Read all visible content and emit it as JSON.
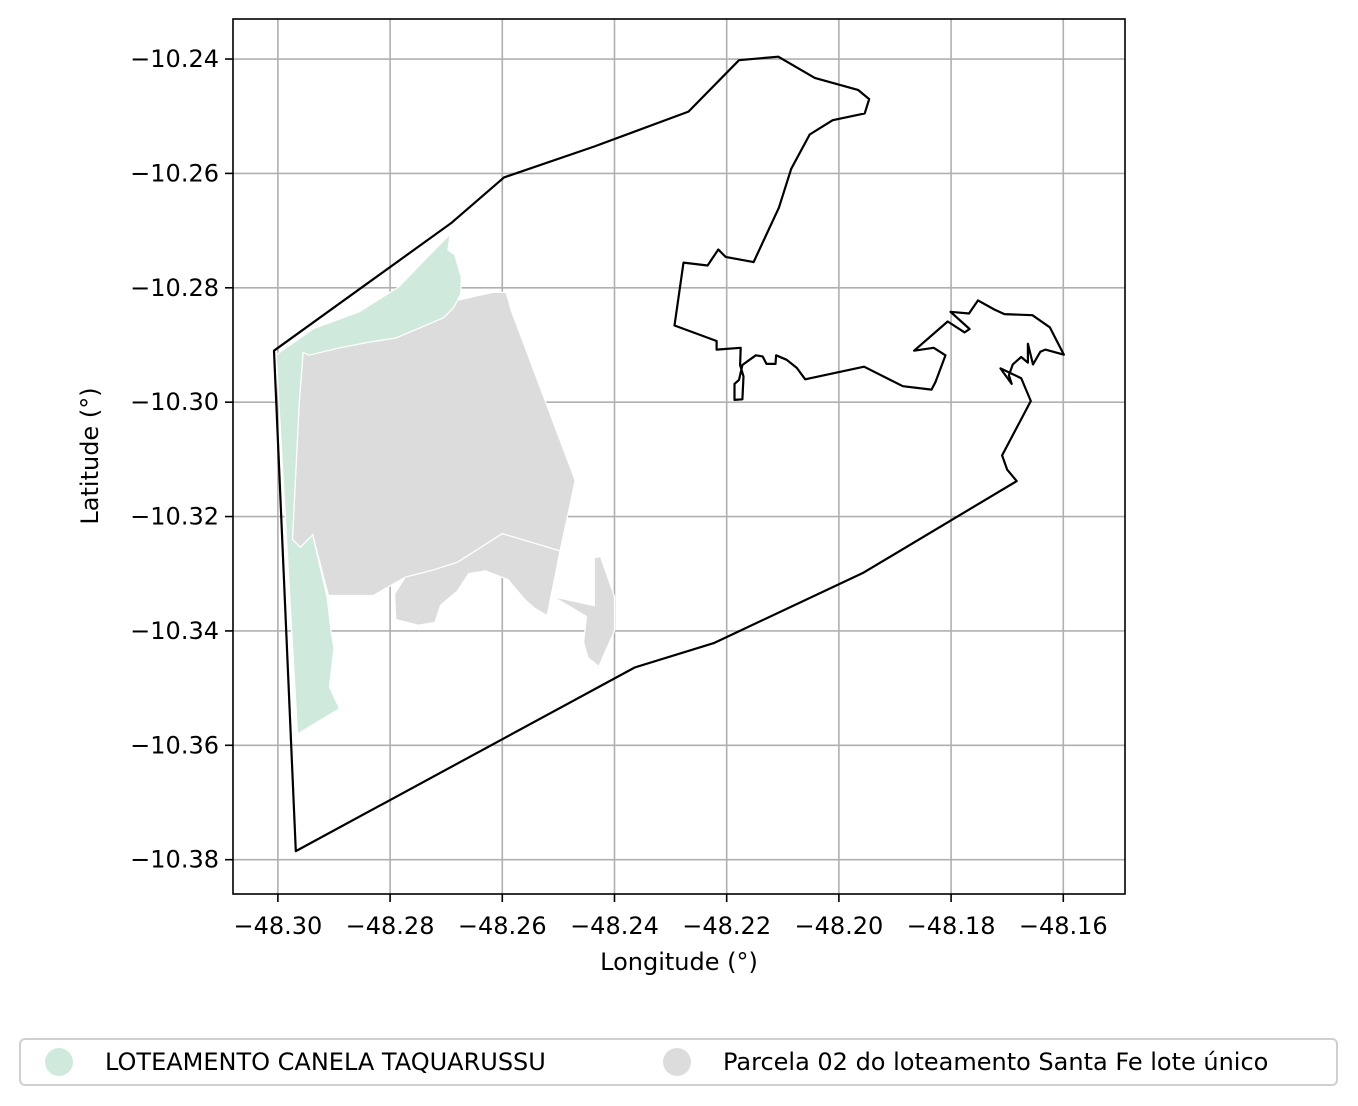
{
  "chart_data": {
    "type": "map",
    "xlabel": "Longitude (°)",
    "ylabel": "Latitude (°)",
    "xlim": [
      -48.308,
      -48.149
    ],
    "ylim": [
      -10.386,
      -10.233
    ],
    "xticks": [
      -48.3,
      -48.28,
      -48.26,
      -48.24,
      -48.22,
      -48.2,
      -48.18,
      -48.16
    ],
    "xtick_labels": [
      "−48.30",
      "−48.28",
      "−48.26",
      "−48.24",
      "−48.22",
      "−48.20",
      "−48.18",
      "−48.16"
    ],
    "yticks": [
      -10.24,
      -10.26,
      -10.28,
      -10.3,
      -10.32,
      -10.34,
      -10.36,
      -10.38
    ],
    "ytick_labels": [
      "−10.24",
      "−10.26",
      "−10.28",
      "−10.30",
      "−10.32",
      "−10.34",
      "−10.36",
      "−10.38"
    ],
    "grid": true,
    "legend_position": "bottom",
    "colors": {
      "canela": "#cfeadd",
      "santa_fe": "#dcdcdc",
      "boundary": "#000000",
      "grid": "#b0b0b0"
    },
    "legend": [
      {
        "label": "LOTEAMENTO CANELA TAQUARUSSU",
        "color": "#cfeadd"
      },
      {
        "label": "Parcela 02 do loteamento Santa Fe lote único",
        "color": "#dcdcdc"
      }
    ],
    "boundary": [
      [
        -48.3007,
        -10.291
      ],
      [
        -48.269,
        -10.2686
      ],
      [
        -48.2597,
        -10.2607
      ],
      [
        -48.2436,
        -10.2553
      ],
      [
        -48.2268,
        -10.2492
      ],
      [
        -48.2178,
        -10.2402
      ],
      [
        -48.2108,
        -10.2396
      ],
      [
        -48.2043,
        -10.2433
      ],
      [
        -48.1966,
        -10.2454
      ],
      [
        -48.1946,
        -10.247
      ],
      [
        -48.1954,
        -10.2495
      ],
      [
        -48.2011,
        -10.2507
      ],
      [
        -48.2052,
        -10.2532
      ],
      [
        -48.2085,
        -10.2592
      ],
      [
        -48.2107,
        -10.266
      ],
      [
        -48.2152,
        -10.2755
      ],
      [
        -48.2202,
        -10.2746
      ],
      [
        -48.2215,
        -10.2733
      ],
      [
        -48.2234,
        -10.2761
      ],
      [
        -48.2277,
        -10.2756
      ],
      [
        -48.2293,
        -10.2866
      ],
      [
        -48.2218,
        -10.2893
      ],
      [
        -48.2218,
        -10.2908
      ],
      [
        -48.2175,
        -10.2905
      ],
      [
        -48.2176,
        -10.2935
      ],
      [
        -48.217,
        -10.2955
      ],
      [
        -48.2172,
        -10.2995
      ],
      [
        -48.2186,
        -10.2996
      ],
      [
        -48.2186,
        -10.2968
      ],
      [
        -48.2178,
        -10.2961
      ],
      [
        -48.2172,
        -10.2935
      ],
      [
        -48.2158,
        -10.2925
      ],
      [
        -48.2148,
        -10.2918
      ],
      [
        -48.2136,
        -10.292
      ],
      [
        -48.2129,
        -10.2933
      ],
      [
        -48.2113,
        -10.2933
      ],
      [
        -48.2112,
        -10.2918
      ],
      [
        -48.2093,
        -10.2926
      ],
      [
        -48.2075,
        -10.294
      ],
      [
        -48.206,
        -10.296
      ],
      [
        -48.1955,
        -10.2938
      ],
      [
        -48.1886,
        -10.2972
      ],
      [
        -48.1835,
        -10.2978
      ],
      [
        -48.1828,
        -10.2965
      ],
      [
        -48.181,
        -10.2918
      ],
      [
        -48.1831,
        -10.2905
      ],
      [
        -48.1866,
        -10.291
      ],
      [
        -48.1806,
        -10.2859
      ],
      [
        -48.1776,
        -10.2878
      ],
      [
        -48.1767,
        -10.2872
      ],
      [
        -48.1801,
        -10.2842
      ],
      [
        -48.1768,
        -10.2845
      ],
      [
        -48.1752,
        -10.2822
      ],
      [
        -48.1723,
        -10.2838
      ],
      [
        -48.1705,
        -10.2846
      ],
      [
        -48.1655,
        -10.2848
      ],
      [
        -48.1624,
        -10.2869
      ],
      [
        -48.1599,
        -10.2917
      ],
      [
        -48.1632,
        -10.2908
      ],
      [
        -48.1641,
        -10.2912
      ],
      [
        -48.1654,
        -10.2934
      ],
      [
        -48.1663,
        -10.2898
      ],
      [
        -48.1663,
        -10.2931
      ],
      [
        -48.1675,
        -10.2921
      ],
      [
        -48.169,
        -10.2934
      ],
      [
        -48.1697,
        -10.2953
      ],
      [
        -48.1692,
        -10.2968
      ],
      [
        -48.1707,
        -10.2948
      ],
      [
        -48.1712,
        -10.2941
      ],
      [
        -48.1675,
        -10.2958
      ],
      [
        -48.1658,
        -10.2998
      ],
      [
        -48.1709,
        -10.3093
      ],
      [
        -48.17,
        -10.3118
      ],
      [
        -48.1683,
        -10.3138
      ],
      [
        -48.1956,
        -10.3298
      ],
      [
        -48.2222,
        -10.3421
      ],
      [
        -48.2364,
        -10.3464
      ],
      [
        -48.2968,
        -10.3785
      ],
      [
        -48.3007,
        -10.291
      ]
    ],
    "canela_parcels": [
      [
        [
          -48.3003,
          -10.2917
        ],
        [
          -48.2936,
          -10.2871
        ],
        [
          -48.2855,
          -10.2842
        ],
        [
          -48.2784,
          -10.2798
        ],
        [
          -48.2747,
          -10.276
        ],
        [
          -48.269,
          -10.2703
        ],
        [
          -48.2688,
          -10.2686
        ],
        [
          -48.269,
          -10.2686
        ],
        [
          -48.2697,
          -10.2734
        ],
        [
          -48.2685,
          -10.2742
        ],
        [
          -48.268,
          -10.2758
        ],
        [
          -48.2673,
          -10.2782
        ],
        [
          -48.2674,
          -10.281
        ],
        [
          -48.268,
          -10.2822
        ],
        [
          -48.2687,
          -10.2835
        ],
        [
          -48.2704,
          -10.2852
        ],
        [
          -48.2742,
          -10.2868
        ],
        [
          -48.279,
          -10.2888
        ],
        [
          -48.2838,
          -10.2895
        ],
        [
          -48.289,
          -10.2905
        ],
        [
          -48.2945,
          -10.2918
        ],
        [
          -48.2955,
          -10.2913
        ],
        [
          -48.2962,
          -10.3002
        ],
        [
          -48.2974,
          -10.324
        ],
        [
          -48.296,
          -10.3254
        ],
        [
          -48.2938,
          -10.3232
        ],
        [
          -48.2912,
          -10.3342
        ],
        [
          -48.2905,
          -10.3402
        ],
        [
          -48.29,
          -10.343
        ],
        [
          -48.2908,
          -10.3498
        ],
        [
          -48.289,
          -10.3536
        ],
        [
          -48.2965,
          -10.358
        ],
        [
          -48.3003,
          -10.2917
        ]
      ]
    ],
    "santa_fe_parcels": [
      [
        [
          -48.2955,
          -10.2913
        ],
        [
          -48.289,
          -10.2905
        ],
        [
          -48.2838,
          -10.2895
        ],
        [
          -48.279,
          -10.2888
        ],
        [
          -48.2742,
          -10.2868
        ],
        [
          -48.2704,
          -10.2852
        ],
        [
          -48.2687,
          -10.2835
        ],
        [
          -48.268,
          -10.2822
        ],
        [
          -48.265,
          -10.2815
        ],
        [
          -48.2617,
          -10.2808
        ],
        [
          -48.2593,
          -10.2808
        ],
        [
          -48.2584,
          -10.284
        ],
        [
          -48.247,
          -10.3137
        ],
        [
          -48.2497,
          -10.326
        ],
        [
          -48.26,
          -10.323
        ],
        [
          -48.268,
          -10.328
        ],
        [
          -48.2725,
          -10.3294
        ],
        [
          -48.2773,
          -10.3306
        ],
        [
          -48.283,
          -10.3338
        ],
        [
          -48.291,
          -10.3338
        ],
        [
          -48.2938,
          -10.3232
        ],
        [
          -48.296,
          -10.3254
        ],
        [
          -48.2974,
          -10.324
        ],
        [
          -48.2962,
          -10.3002
        ],
        [
          -48.2955,
          -10.2913
        ]
      ],
      [
        [
          -48.2773,
          -10.3306
        ],
        [
          -48.2725,
          -10.3294
        ],
        [
          -48.268,
          -10.328
        ],
        [
          -48.26,
          -10.323
        ],
        [
          -48.2497,
          -10.326
        ],
        [
          -48.252,
          -10.3373
        ],
        [
          -48.2543,
          -10.336
        ],
        [
          -48.256,
          -10.3345
        ],
        [
          -48.259,
          -10.331
        ],
        [
          -48.263,
          -10.3295
        ],
        [
          -48.266,
          -10.33
        ],
        [
          -48.268,
          -10.333
        ],
        [
          -48.271,
          -10.3355
        ],
        [
          -48.272,
          -10.3385
        ],
        [
          -48.275,
          -10.339
        ],
        [
          -48.277,
          -10.3385
        ],
        [
          -48.279,
          -10.338
        ],
        [
          -48.2792,
          -10.3335
        ],
        [
          -48.2773,
          -10.3306
        ]
      ],
      [
        [
          -48.2436,
          -10.3272
        ],
        [
          -48.2425,
          -10.327
        ],
        [
          -48.24,
          -10.334
        ],
        [
          -48.24,
          -10.34
        ],
        [
          -48.2428,
          -10.3462
        ],
        [
          -48.2447,
          -10.3447
        ],
        [
          -48.2455,
          -10.342
        ],
        [
          -48.245,
          -10.3375
        ],
        [
          -48.2485,
          -10.3354
        ],
        [
          -48.251,
          -10.334
        ],
        [
          -48.2436,
          -10.3356
        ],
        [
          -48.2436,
          -10.3272
        ]
      ]
    ]
  }
}
